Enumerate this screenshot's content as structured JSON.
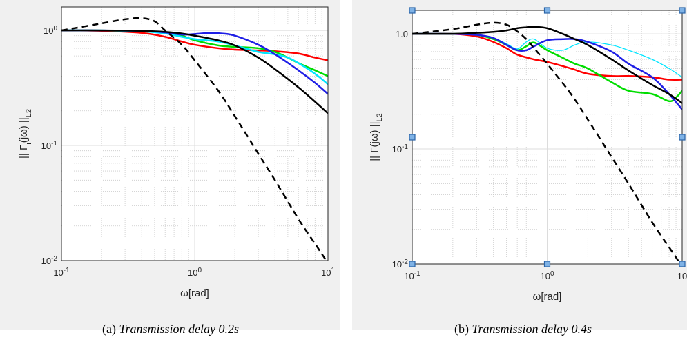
{
  "chart_data": [
    {
      "type": "line",
      "caption_prefix": "(a)",
      "caption_text": "Transmission delay 0.2s",
      "xlabel": "ω[rad]",
      "ylabel_html": "|| Γ<tspan baseline-shift=\"sub\" font-size=\"11\">i</tspan>(jω) ||<tspan baseline-shift=\"sub\" font-size=\"11\">L2</tspan>",
      "xscale": "log",
      "yscale": "log",
      "xlim": [
        0.1,
        10
      ],
      "ylim": [
        0.01,
        1.6
      ],
      "xticks": [
        {
          "v": 0.1,
          "m": "10",
          "e": "-1"
        },
        {
          "v": 1,
          "m": "10",
          "e": "0"
        },
        {
          "v": 10,
          "m": "10",
          "e": "1"
        }
      ],
      "yticks": [
        {
          "v": 0.01,
          "m": "10",
          "e": "-2"
        },
        {
          "v": 0.1,
          "m": "10",
          "e": "-1"
        },
        {
          "v": 1,
          "m": "10",
          "e": "0"
        }
      ],
      "grid": true,
      "series": [
        {
          "color": "#ff0000",
          "dash": false,
          "width": 2.5,
          "x": [
            0.1,
            0.2,
            0.4,
            0.6,
            0.8,
            1.0,
            1.5,
            2,
            3,
            4,
            6,
            8,
            10
          ],
          "y": [
            1.0,
            0.99,
            0.95,
            0.88,
            0.8,
            0.75,
            0.7,
            0.68,
            0.67,
            0.66,
            0.63,
            0.58,
            0.55
          ]
        },
        {
          "color": "#00dd00",
          "dash": false,
          "width": 2.5,
          "x": [
            0.1,
            0.2,
            0.4,
            0.6,
            0.8,
            1.0,
            1.5,
            2,
            3,
            4,
            5,
            6,
            8,
            10
          ],
          "y": [
            1.0,
            1.0,
            0.98,
            0.95,
            0.9,
            0.82,
            0.74,
            0.72,
            0.7,
            0.65,
            0.58,
            0.52,
            0.45,
            0.4
          ]
        },
        {
          "color": "#00e5ff",
          "dash": false,
          "width": 2.5,
          "x": [
            0.1,
            0.2,
            0.4,
            0.6,
            0.8,
            1.0,
            1.5,
            2,
            3,
            4,
            5,
            6,
            8,
            10
          ],
          "y": [
            1.0,
            1.0,
            0.98,
            0.94,
            0.88,
            0.84,
            0.8,
            0.74,
            0.65,
            0.62,
            0.58,
            0.52,
            0.42,
            0.34
          ]
        },
        {
          "color": "#1f1fe6",
          "dash": false,
          "width": 2.5,
          "x": [
            0.1,
            0.2,
            0.4,
            0.6,
            0.8,
            1.0,
            1.3,
            1.6,
            2,
            3,
            4,
            6,
            8,
            10
          ],
          "y": [
            1.0,
            1.0,
            0.99,
            0.96,
            0.92,
            0.93,
            0.95,
            0.94,
            0.9,
            0.75,
            0.62,
            0.45,
            0.35,
            0.28
          ]
        },
        {
          "color": "#000000",
          "dash": false,
          "width": 2.5,
          "x": [
            0.1,
            0.2,
            0.4,
            0.6,
            0.8,
            1.0,
            1.5,
            2,
            3,
            4,
            6,
            8,
            10
          ],
          "y": [
            1.0,
            1.0,
            0.99,
            0.97,
            0.94,
            0.9,
            0.82,
            0.74,
            0.58,
            0.46,
            0.32,
            0.24,
            0.19
          ]
        },
        {
          "color": "#000000",
          "dash": true,
          "width": 2.5,
          "x": [
            0.1,
            0.2,
            0.3,
            0.4,
            0.5,
            0.6,
            0.8,
            1.0,
            1.5,
            2,
            3,
            4,
            6,
            8,
            10
          ],
          "y": [
            1.0,
            1.15,
            1.25,
            1.28,
            1.2,
            1.0,
            0.75,
            0.55,
            0.3,
            0.18,
            0.085,
            0.05,
            0.023,
            0.014,
            0.0095
          ]
        }
      ]
    },
    {
      "type": "line",
      "caption_prefix": "(b)",
      "caption_text": "Transmission delay 0.4s",
      "xlabel": "ω[rad]",
      "ylabel_html": "|| Γ(jω) ||<tspan baseline-shift=\"sub\" font-size=\"11\">L2</tspan>",
      "xscale": "log",
      "yscale": "log",
      "xlim": [
        0.1,
        10
      ],
      "ylim": [
        0.01,
        1.6
      ],
      "xticks": [
        {
          "v": 0.1,
          "m": "10",
          "e": "-1"
        },
        {
          "v": 1,
          "m": "10",
          "e": "0"
        },
        {
          "v": 10,
          "m": "10",
          "e": ""
        }
      ],
      "yticks": [
        {
          "v": 0.01,
          "m": "10",
          "e": "-2"
        },
        {
          "v": 0.1,
          "m": "10",
          "e": "-1"
        },
        {
          "v": 1,
          "m": "1.0",
          "e": ""
        }
      ],
      "grid": true,
      "selected": true,
      "series": [
        {
          "color": "#ff0000",
          "dash": false,
          "width": 2.5,
          "x": [
            0.1,
            0.2,
            0.3,
            0.4,
            0.5,
            0.6,
            0.8,
            1.0,
            1.5,
            2,
            3,
            4,
            6,
            8,
            10
          ],
          "y": [
            1.0,
            1.0,
            0.95,
            0.85,
            0.75,
            0.66,
            0.6,
            0.57,
            0.5,
            0.45,
            0.43,
            0.43,
            0.42,
            0.4,
            0.4
          ]
        },
        {
          "color": "#00dd00",
          "dash": false,
          "width": 2.5,
          "x": [
            0.1,
            0.2,
            0.3,
            0.4,
            0.5,
            0.6,
            0.7,
            0.8,
            1.0,
            1.3,
            1.6,
            2,
            3,
            4,
            6,
            8,
            9,
            10
          ],
          "y": [
            1.0,
            1.0,
            0.98,
            0.9,
            0.8,
            0.72,
            0.78,
            0.84,
            0.72,
            0.62,
            0.55,
            0.5,
            0.38,
            0.32,
            0.3,
            0.26,
            0.28,
            0.32
          ]
        },
        {
          "color": "#00e5ff",
          "dash": false,
          "width": 1.3,
          "x": [
            0.1,
            0.2,
            0.3,
            0.4,
            0.5,
            0.6,
            0.7,
            0.8,
            1.0,
            1.3,
            1.6,
            2,
            3,
            4,
            6,
            8,
            10
          ],
          "y": [
            1.0,
            1.0,
            0.98,
            0.92,
            0.82,
            0.74,
            0.85,
            0.9,
            0.75,
            0.72,
            0.8,
            0.85,
            0.8,
            0.72,
            0.6,
            0.5,
            0.42
          ]
        },
        {
          "color": "#1f1fe6",
          "dash": false,
          "width": 2.5,
          "x": [
            0.1,
            0.2,
            0.3,
            0.4,
            0.5,
            0.6,
            0.7,
            0.8,
            1.0,
            1.3,
            1.6,
            2,
            3,
            4,
            6,
            8,
            10
          ],
          "y": [
            1.0,
            1.0,
            0.98,
            0.92,
            0.8,
            0.72,
            0.72,
            0.78,
            0.88,
            0.9,
            0.9,
            0.85,
            0.7,
            0.55,
            0.42,
            0.3,
            0.22
          ]
        },
        {
          "color": "#000000",
          "dash": false,
          "width": 2.5,
          "x": [
            0.1,
            0.2,
            0.3,
            0.4,
            0.5,
            0.6,
            0.7,
            0.8,
            1.0,
            1.3,
            1.6,
            2,
            3,
            4,
            6,
            8,
            10
          ],
          "y": [
            1.0,
            1.0,
            1.02,
            1.04,
            1.07,
            1.12,
            1.14,
            1.15,
            1.12,
            1.0,
            0.9,
            0.8,
            0.6,
            0.48,
            0.36,
            0.3,
            0.25
          ]
        },
        {
          "color": "#000000",
          "dash": true,
          "width": 2.5,
          "x": [
            0.1,
            0.2,
            0.3,
            0.4,
            0.5,
            0.6,
            0.7,
            0.8,
            1.0,
            1.5,
            2,
            3,
            4,
            6,
            8,
            10
          ],
          "y": [
            1.0,
            1.1,
            1.2,
            1.25,
            1.2,
            1.05,
            0.9,
            0.75,
            0.55,
            0.3,
            0.18,
            0.085,
            0.05,
            0.023,
            0.014,
            0.0095
          ]
        }
      ]
    }
  ]
}
